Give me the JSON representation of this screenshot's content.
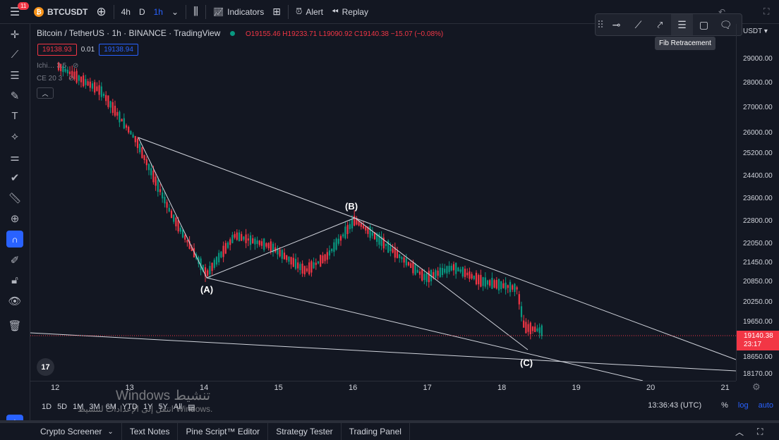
{
  "topbar": {
    "notifications": "11",
    "symbol": "BTCUSDT",
    "intervals": [
      "4h",
      "D",
      "1h"
    ],
    "indicators_label": "Indicators",
    "alert_label": "Alert",
    "replay_label": "Replay"
  },
  "legend": {
    "title": "Bitcoin / TetherUS · 1h · BINANCE · TradingView",
    "ohlc": "O19155.46 H19233.71 L19090.92 C19140.38 −15.07 (−0.08%)",
    "bid": "19138.93",
    "spread": "0.01",
    "ask": "19138.94",
    "indicator1": "Ichi… 3.5",
    "indicator2": "CE 20 3"
  },
  "floating_toolbar": {
    "tooltip": "Fib Retracement"
  },
  "price_axis": {
    "currency": "USDT",
    "ticks": [
      "29000.00",
      "28000.00",
      "27000.00",
      "26000.00",
      "25200.00",
      "24400.00",
      "23600.00",
      "22800.00",
      "22050.00",
      "21450.00",
      "20850.00",
      "20250.00",
      "19650.00",
      "18650.00",
      "18170.00"
    ],
    "current_price": "19140.38",
    "countdown": "23:17",
    "color_down": "#f23645"
  },
  "time_axis": {
    "ticks": [
      "12",
      "13",
      "14",
      "15",
      "16",
      "17",
      "18",
      "19",
      "20",
      "21"
    ]
  },
  "wave_labels": {
    "a": "(A)",
    "b": "(B)",
    "c": "(C)"
  },
  "range_bar": {
    "ranges": [
      "1D",
      "5D",
      "1M",
      "3M",
      "6M",
      "YTD",
      "1Y",
      "5Y",
      "All"
    ],
    "time": "13:36:43 (UTC)",
    "percent": "%",
    "log": "log",
    "auto": "auto"
  },
  "watermark": {
    "line1": "Windows تنشيط",
    "line2": "انتقل إلى الإعدادات لتنشيط Windows."
  },
  "bottom_panel": {
    "tabs": [
      "Crypto Screener",
      "Text Notes",
      "Pine Script™ Editor",
      "Strategy Tester",
      "Trading Panel"
    ]
  },
  "colors": {
    "up": "#089981",
    "down": "#f23645",
    "accent": "#2962ff",
    "background": "#131722"
  }
}
